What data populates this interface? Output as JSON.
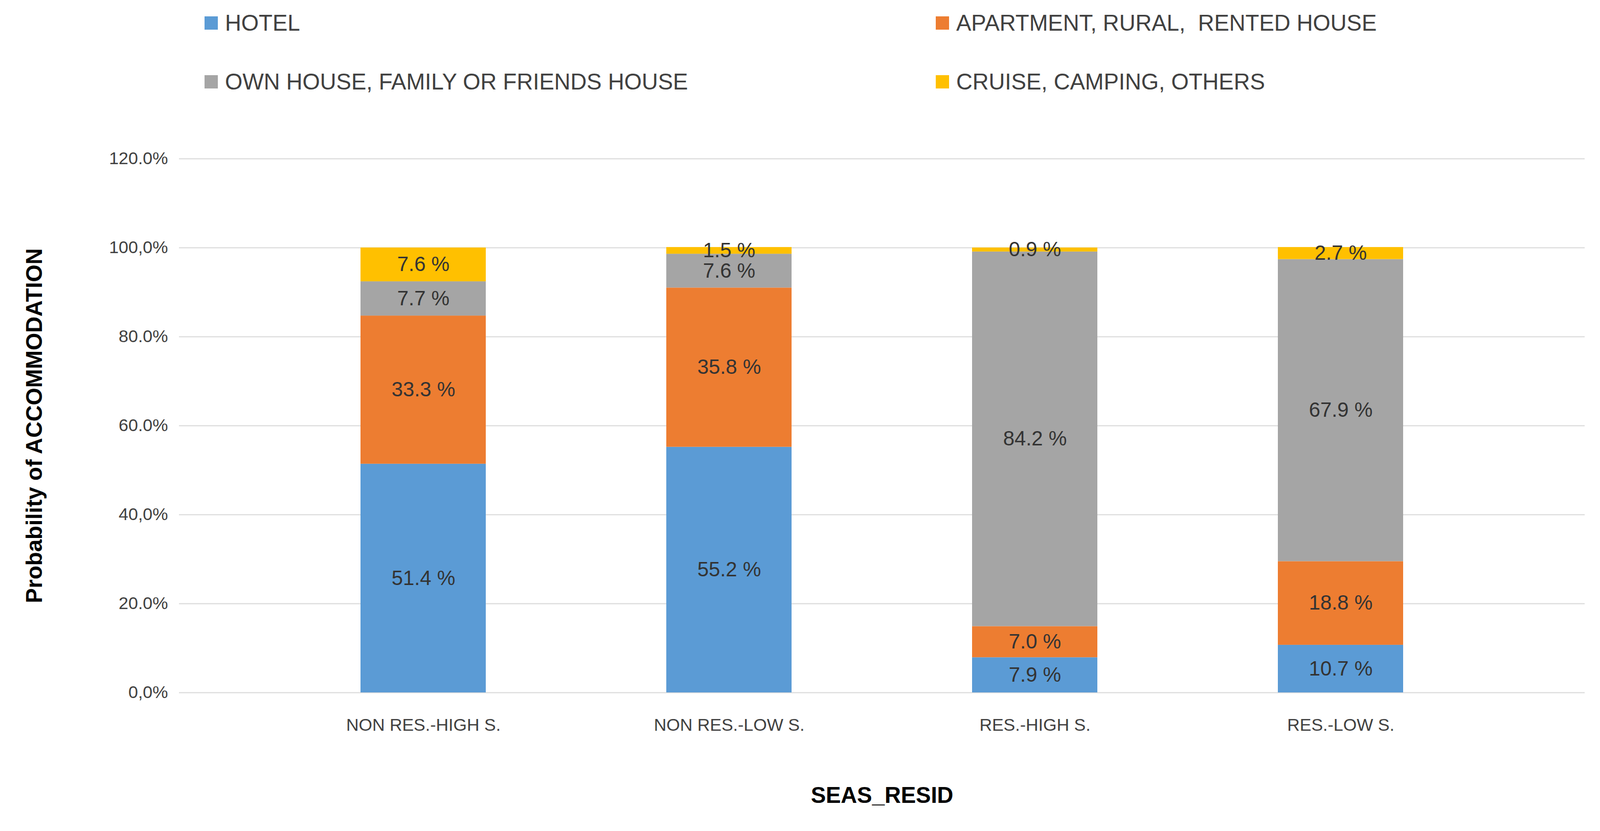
{
  "chart_data": {
    "type": "bar",
    "stacked": true,
    "data_labels": true,
    "grid": true,
    "legend": "top",
    "x_label": "SEAS_RESID",
    "y_label": "Probability of ACCOMMODATION",
    "categories": [
      "NON RES.-HIGH S.",
      "NON RES.-LOW S.",
      "RES.-HIGH S.",
      "RES.-LOW S."
    ],
    "series": [
      {
        "name": "HOTEL",
        "color": "#5B9BD5",
        "values": [
          51.4,
          55.2,
          7.9,
          10.7
        ],
        "value_labels": [
          "51.4 %",
          "55.2 %",
          "7.9 %",
          "10.7 %"
        ]
      },
      {
        "name": "APARTMENT, RURAL,  RENTED HOUSE",
        "color": "#ED7D31",
        "values": [
          33.3,
          35.8,
          7.0,
          18.8
        ],
        "value_labels": [
          "33.3 %",
          "35.8 %",
          "7.0 %",
          "18.8 %"
        ]
      },
      {
        "name": "OWN HOUSE, FAMILY OR FRIENDS HOUSE",
        "color": "#A5A5A5",
        "values": [
          7.7,
          7.6,
          84.2,
          67.9
        ],
        "value_labels": [
          "7.7 %",
          "7.6 %",
          "84.2 %",
          "67.9 %"
        ]
      },
      {
        "name": "CRUISE, CAMPING, OTHERS",
        "color": "#FFC000",
        "values": [
          7.6,
          1.5,
          0.9,
          2.7
        ],
        "value_labels": [
          "7.6 %",
          "1.5 %",
          "0.9 %",
          "2.7 %"
        ]
      }
    ],
    "ylim": [
      0,
      120
    ],
    "yticks": [
      {
        "value": 0,
        "label": "0,0%"
      },
      {
        "value": 20,
        "label": "20.0%"
      },
      {
        "value": 40,
        "label": "40,0%"
      },
      {
        "value": 60,
        "label": "60.0%"
      },
      {
        "value": 80,
        "label": "80.0%"
      },
      {
        "value": 100,
        "label": "100,0%"
      },
      {
        "value": 120,
        "label": "120.0%"
      }
    ]
  }
}
